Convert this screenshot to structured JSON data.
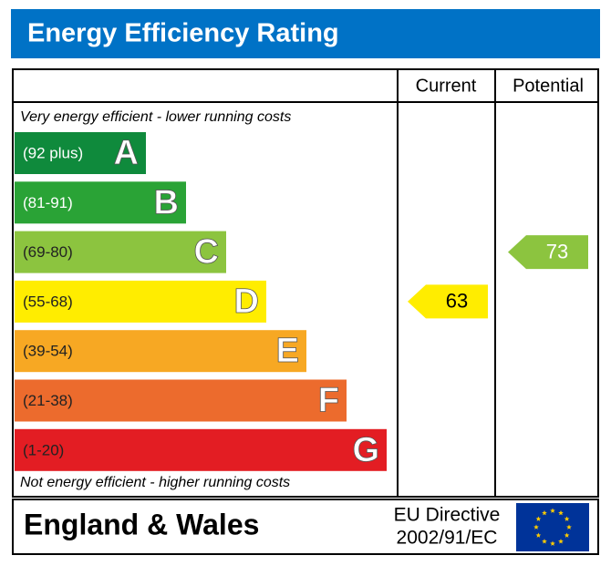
{
  "header": {
    "title": "Energy Efficiency Rating"
  },
  "columns": {
    "current": "Current",
    "potential": "Potential"
  },
  "notes": {
    "top": "Very energy efficient - lower running costs",
    "bottom": "Not energy efficient - higher running costs"
  },
  "bands": [
    {
      "range": "(92 plus)",
      "letter": "A",
      "color": "#0f8a3c",
      "label_color": "#ffffff"
    },
    {
      "range": "(81-91)",
      "letter": "B",
      "color": "#2aa336",
      "label_color": "#ffffff"
    },
    {
      "range": "(69-80)",
      "letter": "C",
      "color": "#8cc43f",
      "label_color": "#222222"
    },
    {
      "range": "(55-68)",
      "letter": "D",
      "color": "#ffed00",
      "label_color": "#222222"
    },
    {
      "range": "(39-54)",
      "letter": "E",
      "color": "#f7a823",
      "label_color": "#222222"
    },
    {
      "range": "(21-38)",
      "letter": "F",
      "color": "#ec6b2d",
      "label_color": "#222222"
    },
    {
      "range": "(1-20)",
      "letter": "G",
      "color": "#e31d23",
      "label_color": "#222222"
    }
  ],
  "current": {
    "value": 63,
    "color": "#ffed00",
    "text_color": "#000000"
  },
  "potential": {
    "value": 73,
    "color": "#8cc43f",
    "text_color": "#ffffff"
  },
  "footer": {
    "region": "England & Wales",
    "directive": [
      "EU Directive",
      "2002/91/EC"
    ]
  }
}
